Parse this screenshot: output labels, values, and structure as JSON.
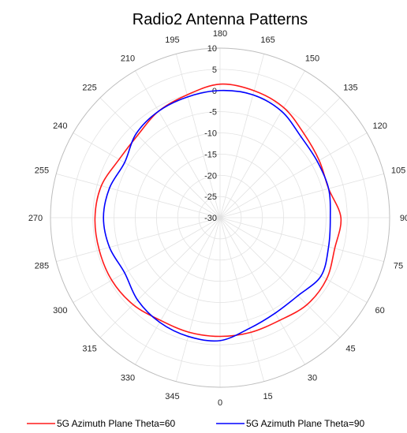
{
  "chart_data": {
    "type": "polar-line",
    "title": "Radio2 Antenna Patterns",
    "angle_ticks": [
      0,
      15,
      30,
      45,
      60,
      75,
      90,
      105,
      120,
      135,
      150,
      165,
      180,
      195,
      210,
      225,
      240,
      255,
      270,
      285,
      300,
      315,
      330,
      345
    ],
    "angle_tick_labels": [
      "0",
      "15",
      "30",
      "45",
      "60",
      "75",
      "90",
      "105",
      "120",
      "135",
      "150",
      "165",
      "180",
      "195",
      "210",
      "225",
      "240",
      "255",
      "270",
      "285",
      "300",
      "315",
      "330",
      "345"
    ],
    "angle_zero_location": "bottom",
    "angle_direction": "counterclockwise",
    "r_ticks": [
      -30,
      -25,
      -20,
      -15,
      -10,
      -5,
      0,
      5,
      10
    ],
    "r_tick_labels": [
      "-30",
      "-25",
      "-20",
      "-15",
      "-10",
      "-5",
      "0",
      "5",
      "10"
    ],
    "rlim": [
      -30,
      10
    ],
    "grid": true,
    "legend_position": "bottom",
    "series": [
      {
        "name": "5G Azimuth Plane Theta=60",
        "color": "#ff1a1a",
        "theta": [
          0,
          15,
          30,
          45,
          60,
          75,
          90,
          105,
          120,
          135,
          150,
          165,
          180,
          195,
          210,
          225,
          240,
          255,
          270,
          285,
          300,
          315,
          330,
          345
        ],
        "r": [
          -2,
          -2,
          -2,
          -1,
          -1,
          -2,
          -1.5,
          -3.5,
          -3,
          -2,
          0,
          1,
          1.5,
          0,
          -1,
          -2.5,
          -2.5,
          -1,
          -0.5,
          -0.5,
          -0.5,
          -1,
          -2,
          -2
        ]
      },
      {
        "name": "5G Azimuth Plane Theta=90",
        "color": "#0000ff",
        "theta": [
          0,
          15,
          30,
          45,
          60,
          75,
          90,
          105,
          120,
          135,
          150,
          165,
          180,
          195,
          210,
          225,
          240,
          255,
          270,
          285,
          300,
          315,
          330,
          345
        ],
        "r": [
          -1,
          -3,
          -4,
          -4,
          -2.5,
          -3.5,
          -4,
          -3.5,
          -3.5,
          -3,
          -1,
          0,
          0,
          -0.5,
          -1,
          -2,
          -4,
          -3,
          -2.5,
          -3,
          -4,
          -2.5,
          -1.5,
          -1
        ]
      }
    ]
  }
}
